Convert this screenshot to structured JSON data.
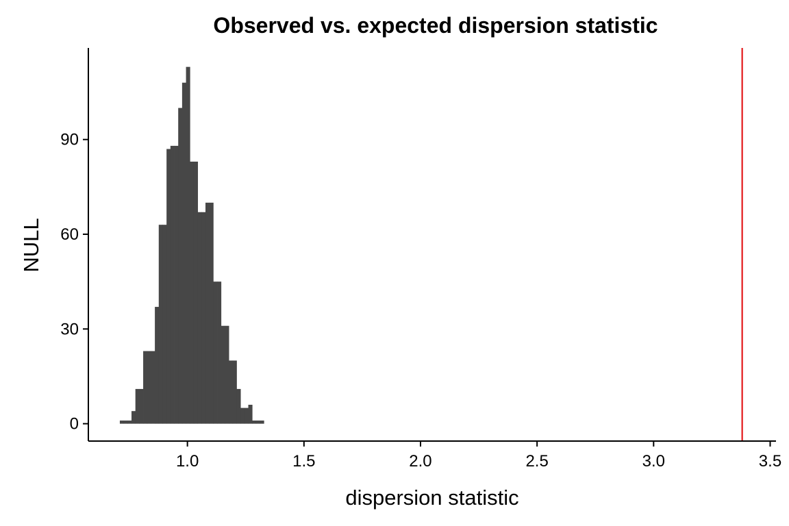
{
  "chart_data": {
    "type": "bar",
    "subtype": "histogram",
    "title": "Observed vs. expected dispersion statistic",
    "xlabel": "dispersion statistic",
    "ylabel": "NULL",
    "xlim": [
      0.575,
      3.525
    ],
    "ylim": [
      -5.5,
      119.0
    ],
    "x_ticks": [
      1.0,
      1.5,
      2.0,
      2.5,
      3.0,
      3.5
    ],
    "x_tick_labels": [
      "1.0",
      "1.5",
      "2.0",
      "2.5",
      "3.0",
      "3.5"
    ],
    "y_ticks": [
      0,
      30,
      60,
      90
    ],
    "y_tick_labels": [
      "0",
      "30",
      "60",
      "90"
    ],
    "bin_width": 0.0167,
    "bins": {
      "x_start": [
        0.71,
        0.7267,
        0.7434,
        0.7601,
        0.7768,
        0.7935,
        0.8102,
        0.8269,
        0.8436,
        0.8603,
        0.877,
        0.8937,
        0.9104,
        0.9271,
        0.9438,
        0.9605,
        0.9772,
        0.9939,
        1.0106,
        1.0273,
        1.044,
        1.0607,
        1.0774,
        1.0941,
        1.1108,
        1.1275,
        1.1442,
        1.1609,
        1.1776,
        1.1943,
        1.211,
        1.2277,
        1.2444,
        1.2611,
        1.2778,
        1.2945,
        1.3112
      ],
      "counts": [
        1,
        1,
        1,
        4,
        11,
        11,
        23,
        23,
        23,
        37,
        63,
        63,
        87,
        88,
        88,
        100,
        108,
        113,
        83,
        83,
        67,
        67,
        70,
        70,
        45,
        45,
        31,
        31,
        20,
        20,
        11,
        5,
        5,
        6,
        1,
        1,
        1
      ]
    },
    "reference_line": {
      "x": 3.38,
      "color": "#e31a1c"
    },
    "bar_color": "#474747",
    "grid": false,
    "legend": "none"
  }
}
